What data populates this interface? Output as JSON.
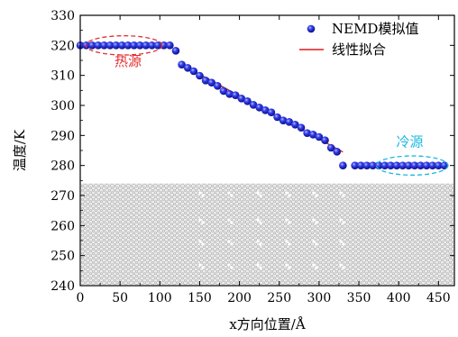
{
  "chart_data": {
    "type": "scatter",
    "xlabel": "x方向位置/Å",
    "ylabel": "温度/K",
    "xlim": [
      0,
      470
    ],
    "ylim": [
      240,
      330
    ],
    "xticks": [
      0,
      50,
      100,
      150,
      200,
      250,
      300,
      350,
      400,
      450
    ],
    "yticks": [
      240,
      250,
      260,
      270,
      280,
      290,
      300,
      310,
      320,
      330
    ],
    "legend_position": "top-right",
    "series": [
      {
        "name": "NEMD模拟值",
        "kind": "markers",
        "color": "#1a1adc",
        "x": [
          0,
          7.5,
          15,
          22.5,
          30,
          37.5,
          45,
          52.5,
          60,
          67.5,
          75,
          82.5,
          90,
          97.5,
          105,
          112.5,
          120,
          127.5,
          135,
          142.5,
          150,
          157.5,
          165,
          172.5,
          180,
          187.5,
          195,
          202.5,
          210,
          217.5,
          225,
          232.5,
          240,
          247.5,
          255,
          262.5,
          270,
          277.5,
          285,
          292.5,
          300,
          307.5,
          315,
          322.5,
          330,
          345,
          352.5,
          360,
          367.5,
          375,
          382.5,
          390,
          397.5,
          405,
          412.5,
          420,
          427.5,
          435,
          442.5,
          450,
          457.5
        ],
        "y": [
          320,
          320,
          320,
          320,
          320,
          320,
          320,
          320,
          320,
          320,
          320,
          320,
          320,
          320,
          320,
          320,
          318.2,
          313.6,
          312.5,
          311.4,
          309.9,
          308.3,
          307.6,
          306.5,
          304.8,
          303.8,
          303.4,
          302.3,
          301.4,
          300.2,
          299.3,
          298.4,
          297.7,
          296.1,
          295.0,
          294.5,
          293.6,
          292.6,
          290.8,
          290.3,
          289.5,
          288.4,
          285.9,
          284.6,
          280,
          280,
          280,
          280,
          280,
          280,
          280,
          280,
          280,
          280,
          280,
          280,
          280,
          280,
          280,
          280,
          280
        ]
      },
      {
        "name": "线性拟合",
        "kind": "line",
        "color": "#e01818",
        "x": [
          127.5,
          330
        ],
        "y": [
          313.6,
          284.5
        ]
      }
    ],
    "annotations": [
      {
        "text": "热源",
        "x": 60,
        "y": 313.2,
        "color": "#e53030",
        "ellipse": {
          "cx": 55,
          "cy": 320,
          "rx": 48,
          "ry": 3.2
        }
      },
      {
        "text": "冷源",
        "x": 414,
        "y": 286.4,
        "color": "#1ab8e0",
        "ellipse": {
          "cx": 417,
          "cy": 280,
          "rx": 45,
          "ry": 3.2
        }
      }
    ],
    "shaded_region": {
      "y0": 240,
      "y1": 274
    }
  }
}
